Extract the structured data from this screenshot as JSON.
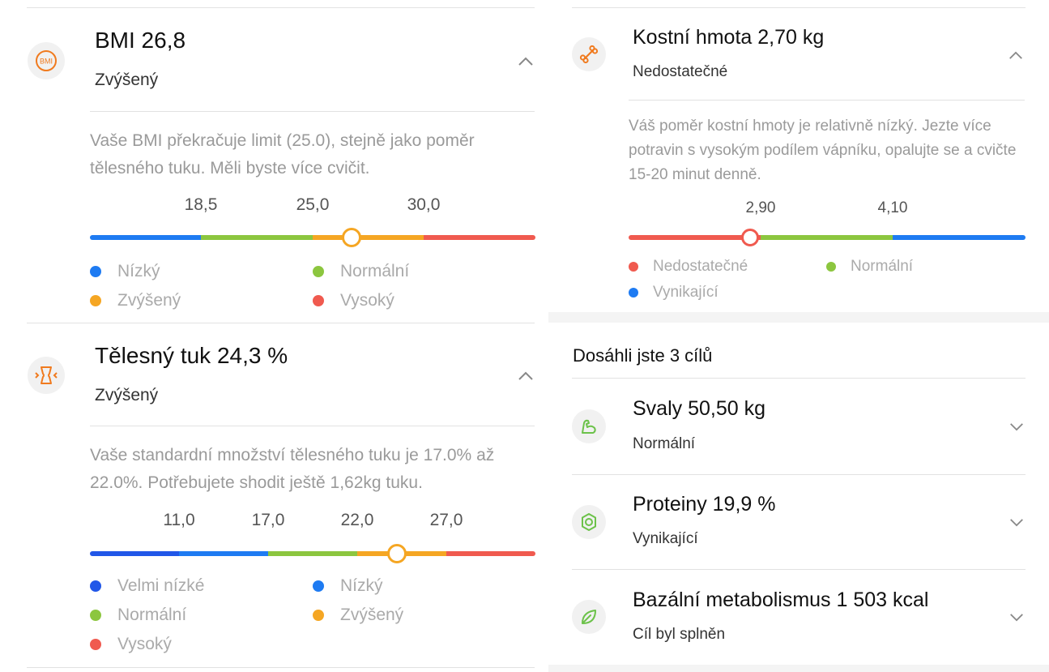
{
  "colors": {
    "blue": "#1e7bf2",
    "dark_blue": "#2157e8",
    "green": "#8cc63f",
    "orange": "#f5a623",
    "red": "#f05a4f",
    "icon_orange": "#f07a1e",
    "icon_green": "#6cc24a"
  },
  "bmi": {
    "title": "BMI 26,8",
    "status": "Zvýšený",
    "description": "Vaše BMI překračuje limit (25.0), stejně jako poměr tělesného tuku. Měli byste více cvičit.",
    "icon_text": "BMI",
    "ticks": [
      "18,5",
      "25,0",
      "30,0"
    ],
    "legend": [
      "Nízký",
      "Normální",
      "Zvýšený",
      "Vysoký"
    ],
    "value": 26.8
  },
  "body_fat": {
    "title": "Tělesný tuk 24,3 %",
    "status": "Zvýšený",
    "description": "Vaše standardní množství tělesného tuku je 17.0% až 22.0%. Potřebujete shodit ještě 1,62kg tuku.",
    "ticks": [
      "11,0",
      "17,0",
      "22,0",
      "27,0"
    ],
    "legend": [
      "Velmi nízké",
      "Nízký",
      "Normální",
      "Zvýšený",
      "Vysoký"
    ],
    "value": 24.3
  },
  "bone_mass": {
    "title": "Kostní hmota 2,70 kg",
    "status": "Nedostatečné",
    "description": "Váš poměr kostní hmoty je relativně nízký. Jezte více potravin s vysokým podílem vápníku, opalujte se a cvičte 15-20 minut denně.",
    "ticks": [
      "2,90",
      "4,10"
    ],
    "legend": [
      "Nedostatečné",
      "Normální",
      "Vynikající"
    ],
    "value": 2.7
  },
  "goals": {
    "heading": "Dosáhli jste 3 cílů",
    "items": [
      {
        "title": "Svaly 50,50 kg",
        "status": "Normální"
      },
      {
        "title": "Proteiny 19,9 %",
        "status": "Vynikající"
      },
      {
        "title": "Bazální metabolismus 1 503 kcal",
        "status": "Cíl byl splněn"
      }
    ]
  }
}
